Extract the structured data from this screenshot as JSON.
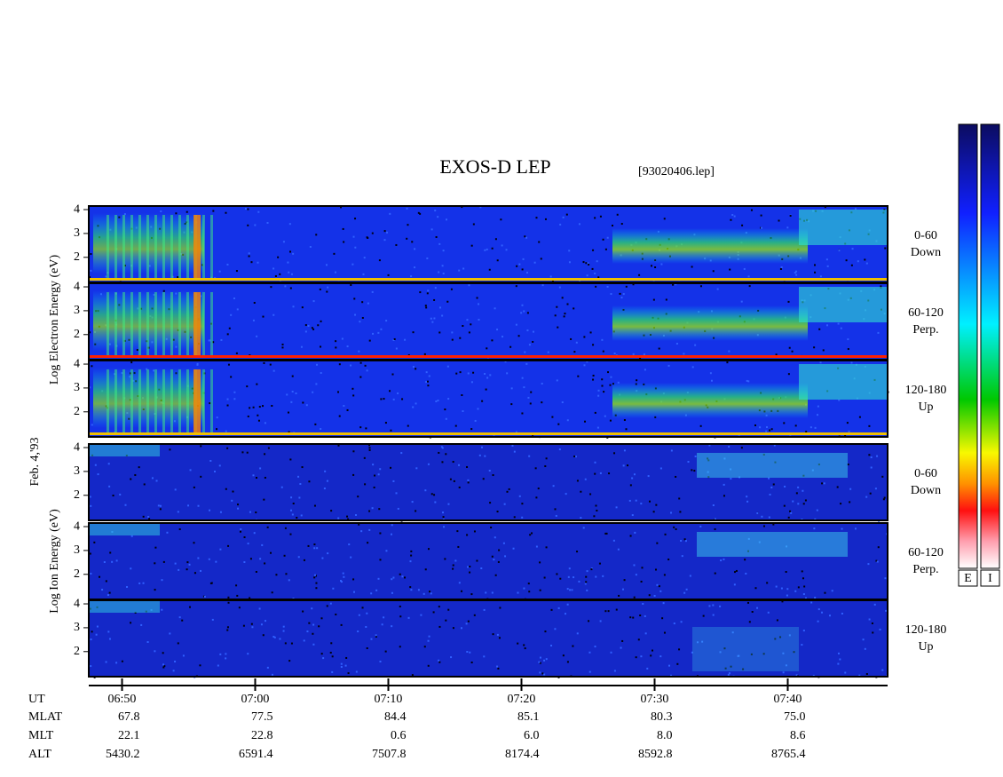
{
  "chart_data": {
    "type": "spectrogram",
    "title": "EXOS-D LEP",
    "file": "[93020406.lep]",
    "date": "Feb. 4,'93",
    "x_label": "UT",
    "xlim": [
      407.5,
      467.5
    ],
    "xticks": [
      {
        "value": 410,
        "label": "06:50"
      },
      {
        "value": 420,
        "label": "07:00"
      },
      {
        "value": 430,
        "label": "07:10"
      },
      {
        "value": 440,
        "label": "07:20"
      },
      {
        "value": 450,
        "label": "07:30"
      },
      {
        "value": 460,
        "label": "07:40"
      }
    ],
    "ylim": [
      0.95,
      4.15
    ],
    "yticks": [
      2,
      3,
      4
    ],
    "species": [
      {
        "label": "Log Electron Energy (eV)",
        "panels": [
          [
            "0-60",
            "Down"
          ],
          [
            "60-120",
            "Perp."
          ],
          [
            "120-180",
            "Up"
          ]
        ]
      },
      {
        "label": "Log Ion Energy (eV)",
        "panels": [
          [
            "0-60",
            "Down"
          ],
          [
            "60-120",
            "Perp."
          ],
          [
            "120-180",
            "Up"
          ]
        ]
      }
    ],
    "ephemeris": [
      {
        "name": "MLAT",
        "values": [
          "67.8",
          "77.5",
          "84.4",
          "85.1",
          "80.3",
          "75.0"
        ]
      },
      {
        "name": "MLT",
        "values": [
          "22.1",
          "22.8",
          "0.6",
          "6.0",
          "8.0",
          "8.6"
        ]
      },
      {
        "name": "ALT",
        "values": [
          "5430.2",
          "6591.4",
          "7507.8",
          "8174.4",
          "8592.8",
          "8765.4"
        ]
      }
    ],
    "colorbar_labels": [
      "E",
      "I"
    ]
  }
}
